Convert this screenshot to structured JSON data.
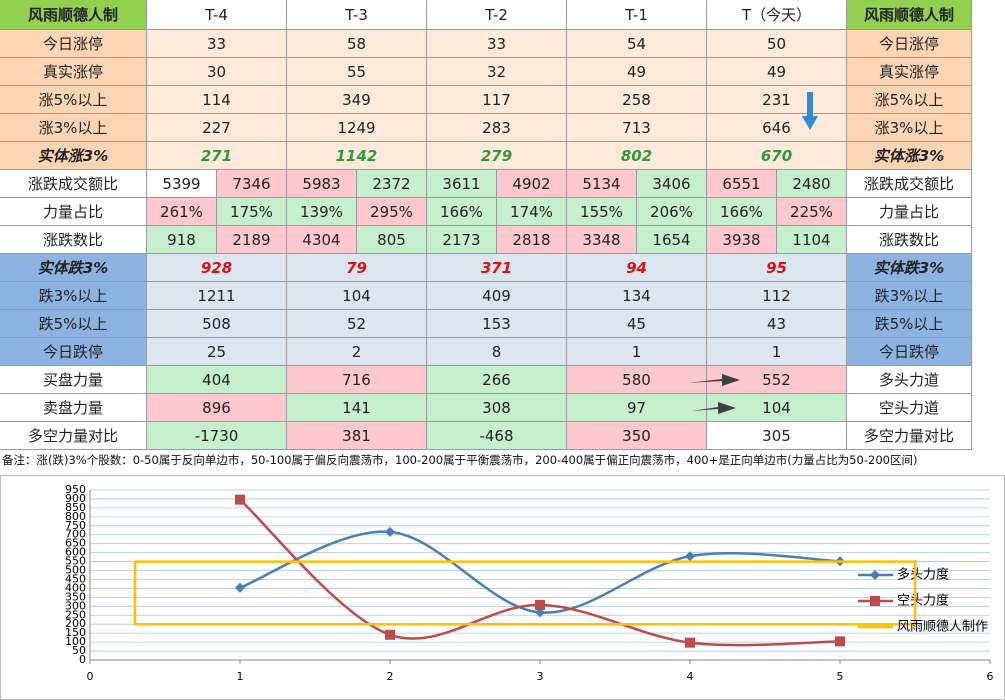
{
  "table": {
    "header": [
      "风雨顺德人制",
      "T-4",
      "T-3",
      "T-2",
      "T-1",
      "T（今天）",
      "风雨顺德人制"
    ],
    "rows": [
      {
        "label": "今日涨停",
        "cells": [
          33,
          58,
          33,
          54,
          50
        ],
        "right": "今日涨停"
      },
      {
        "label": "真实涨停",
        "cells": [
          30,
          55,
          32,
          49,
          49
        ],
        "right": "真实涨停"
      },
      {
        "label": "涨5%以上",
        "cells": [
          114,
          349,
          117,
          258,
          231
        ],
        "right": "涨5%以上"
      },
      {
        "label": "涨3%以上",
        "cells": [
          227,
          1249,
          283,
          713,
          646
        ],
        "right": "涨3%以上"
      },
      {
        "label": "实体涨3%",
        "cells": [
          271,
          1142,
          279,
          802,
          670
        ],
        "right": "实体涨3%"
      },
      {
        "label": "涨跌成交额比",
        "cells": [
          5399,
          7346,
          5983,
          2372,
          3611,
          4902,
          5134,
          3406,
          6551,
          2480
        ],
        "right": "涨跌成交额比"
      },
      {
        "label": "力量占比",
        "cells": [
          "261%",
          "175%",
          "139%",
          "295%",
          "166%",
          "174%",
          "155%",
          "206%",
          "166%",
          "225%"
        ],
        "right": "力量占比"
      },
      {
        "label": "涨跌数比",
        "cells": [
          918,
          2189,
          4304,
          805,
          2173,
          2818,
          3348,
          1654,
          3938,
          1104
        ],
        "right": "涨跌数比"
      },
      {
        "label": "实体跌3%",
        "cells": [
          928,
          79,
          371,
          94,
          95
        ],
        "right": "实体跌3%"
      },
      {
        "label": "跌3%以上",
        "cells": [
          1211,
          104,
          409,
          134,
          112
        ],
        "right": "跌3%以上"
      },
      {
        "label": "跌5%以上",
        "cells": [
          508,
          52,
          153,
          45,
          43
        ],
        "right": "跌5%以上"
      },
      {
        "label": "今日跌停",
        "cells": [
          25,
          2,
          8,
          1,
          1
        ],
        "right": "今日跌停"
      },
      {
        "label": "买盘力量",
        "cells": [
          404,
          716,
          266,
          580,
          552
        ],
        "right": "多头力道"
      },
      {
        "label": "卖盘力量",
        "cells": [
          896,
          141,
          308,
          97,
          104
        ],
        "right": "空头力道"
      },
      {
        "label": "多空力量对比",
        "cells": [
          -1730,
          381,
          -468,
          350,
          305
        ],
        "right": "多空力量对比"
      }
    ],
    "note": "备注：涨(跌)3%个股数：0-50属于反向单边市，50-100属于偏反向震荡市，100-200属于平衡震荡市，200-400属于偏正向震荡市，400+是正向单边市(力量占比为50-200区间)"
  },
  "chart_data": {
    "type": "line",
    "xlim": [
      0,
      6
    ],
    "xticks": [
      0,
      1,
      2,
      3,
      4,
      5,
      6
    ],
    "ylim": [
      0,
      950
    ],
    "yticks": [
      0,
      50,
      100,
      150,
      200,
      250,
      300,
      350,
      400,
      450,
      500,
      550,
      600,
      650,
      700,
      750,
      800,
      850,
      900,
      950
    ],
    "grid": true,
    "series": [
      {
        "name": "多头力度",
        "color": "#4a7ebb",
        "marker": "diamond",
        "smooth": true,
        "x": [
          1,
          2,
          3,
          4,
          5
        ],
        "values": [
          404,
          716,
          266,
          580,
          552
        ]
      },
      {
        "name": "空头力度",
        "color": "#be4b48",
        "marker": "square",
        "smooth": true,
        "x": [
          1,
          2,
          3,
          4,
          5
        ],
        "values": [
          896,
          141,
          308,
          97,
          104
        ]
      },
      {
        "name": "风雨顺德人制作",
        "color": "#ffc000",
        "marker": "none",
        "smooth": false,
        "x": [
          0.3,
          5.5,
          5.5,
          0.3,
          0.3
        ],
        "values": [
          550,
          550,
          200,
          200,
          550
        ]
      }
    ]
  }
}
